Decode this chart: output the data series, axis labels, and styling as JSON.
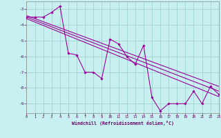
{
  "bg_color": "#c8f0f0",
  "line_color": "#990099",
  "grid_color": "#99cccc",
  "tick_color": "#660066",
  "xlabel": "Windchill (Refroidissement éolien,°C)",
  "xlim": [
    0,
    23
  ],
  "ylim": [
    -9.6,
    -2.5
  ],
  "yticks": [
    -9,
    -8,
    -7,
    -6,
    -5,
    -4,
    -3
  ],
  "xticks": [
    0,
    1,
    2,
    3,
    4,
    5,
    6,
    7,
    8,
    9,
    10,
    11,
    12,
    13,
    14,
    15,
    16,
    17,
    18,
    19,
    20,
    21,
    22,
    23
  ],
  "data_x": [
    0,
    1,
    2,
    3,
    4,
    5,
    6,
    7,
    8,
    9,
    10,
    11,
    12,
    13,
    14,
    15,
    16,
    17,
    18,
    19,
    20,
    21,
    22,
    23
  ],
  "data_y": [
    -3.5,
    -3.5,
    -3.5,
    -3.2,
    -2.8,
    -5.8,
    -5.9,
    -7.0,
    -7.0,
    -7.4,
    -4.9,
    -5.2,
    -6.0,
    -6.5,
    -5.3,
    -8.6,
    -9.45,
    -9.0,
    -9.0,
    -9.0,
    -8.2,
    -9.0,
    -7.9,
    -8.4
  ],
  "trend1_x": [
    0,
    23
  ],
  "trend1_y": [
    -3.5,
    -8.2
  ],
  "trend2_x": [
    0,
    23
  ],
  "trend2_y": [
    -3.6,
    -8.55
  ],
  "trend3_x": [
    0,
    23
  ],
  "trend3_y": [
    -3.4,
    -7.9
  ]
}
